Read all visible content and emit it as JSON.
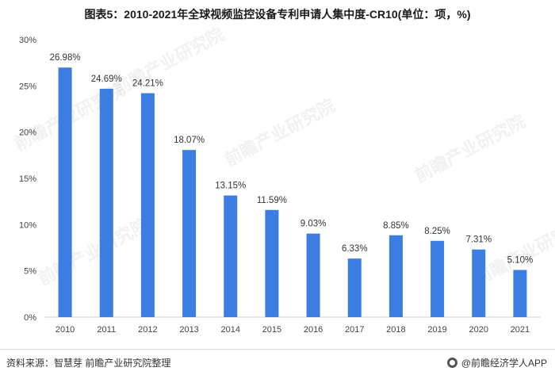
{
  "title": "图表5：2010-2021年全球视频监控设备专利申请人集中度-CR10(单位：项，%)",
  "chart_data": {
    "type": "bar",
    "categories": [
      "2010",
      "2011",
      "2012",
      "2013",
      "2014",
      "2015",
      "2016",
      "2017",
      "2018",
      "2019",
      "2020",
      "2021"
    ],
    "values": [
      26.98,
      24.69,
      24.21,
      18.07,
      13.15,
      11.59,
      9.03,
      6.33,
      8.85,
      8.25,
      7.31,
      5.1
    ],
    "value_labels": [
      "26.98%",
      "24.69%",
      "24.21%",
      "18.07%",
      "13.15%",
      "11.59%",
      "9.03%",
      "6.33%",
      "8.85%",
      "8.25%",
      "7.31%",
      "5.10%"
    ],
    "yticks": [
      "0%",
      "5%",
      "10%",
      "15%",
      "20%",
      "25%",
      "30%"
    ],
    "ylim": [
      0,
      30
    ],
    "bar_color": "#3b7de0",
    "grid": false,
    "legend": "none"
  },
  "footer": {
    "source": "资料来源：智慧芽 前瞻产业研究院整理",
    "brand": "@前瞻经济学人APP"
  },
  "watermark_text": "前瞻产业研究院"
}
